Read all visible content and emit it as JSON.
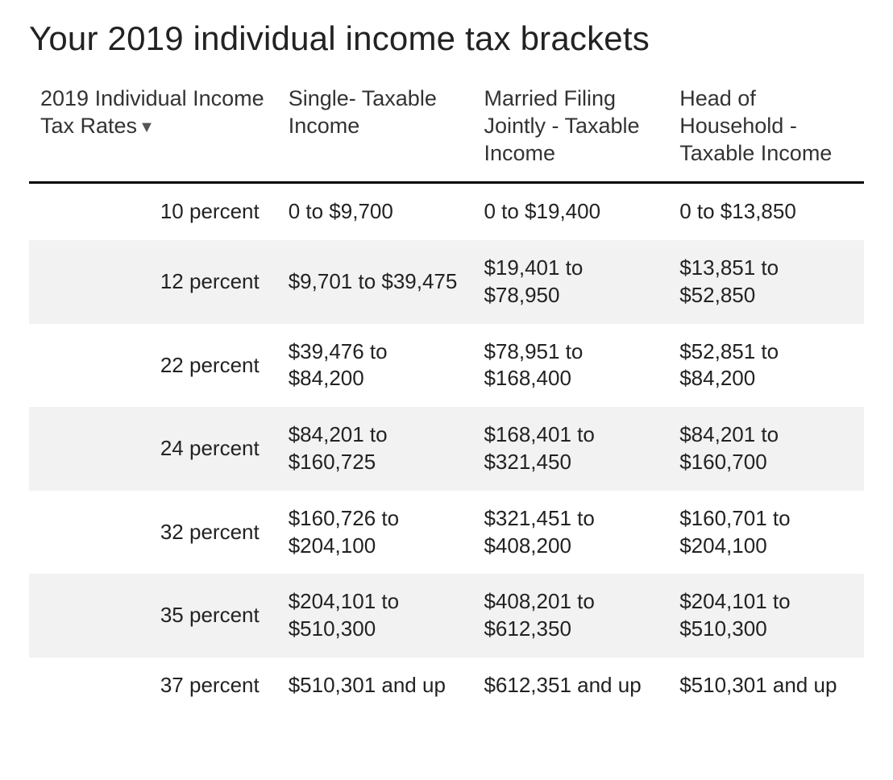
{
  "title": "Your 2019 individual income tax brackets",
  "table": {
    "type": "table",
    "background_color": "#ffffff",
    "row_alt_color": "#f2f2f2",
    "header_border_color": "#000000",
    "text_color": "#222222",
    "header_fontsize": 27,
    "body_fontsize": 26,
    "title_fontsize": 42,
    "columns": [
      {
        "key": "rate",
        "label": "2019 Individual Income Tax Rates",
        "align": "right",
        "sortable": true,
        "sort_dir": "desc"
      },
      {
        "key": "single",
        "label": "Single- Taxable Income",
        "align": "left",
        "sortable": false
      },
      {
        "key": "joint",
        "label": "Married Filing Jointly - Taxable Income",
        "align": "left",
        "sortable": false
      },
      {
        "key": "hoh",
        "label": "Head of Household - Taxable Income",
        "align": "left",
        "sortable": false
      }
    ],
    "rows": [
      {
        "rate": "10 percent",
        "single": "0 to $9,700",
        "joint": "0 to $19,400",
        "hoh": "0 to $13,850"
      },
      {
        "rate": "12 percent",
        "single": "$9,701 to $39,475",
        "joint": "$19,401 to $78,950",
        "hoh": "$13,851 to $52,850"
      },
      {
        "rate": "22 percent",
        "single": "$39,476 to $84,200",
        "joint": "$78,951 to $168,400",
        "hoh": "$52,851 to $84,200"
      },
      {
        "rate": "24 percent",
        "single": "$84,201 to $160,725",
        "joint": "$168,401 to $321,450",
        "hoh": "$84,201 to $160,700"
      },
      {
        "rate": "32 percent",
        "single": "$160,726 to $204,100",
        "joint": "$321,451 to $408,200",
        "hoh": "$160,701 to $204,100"
      },
      {
        "rate": "35 percent",
        "single": "$204,101 to $510,300",
        "joint": "$408,201 to $612,350",
        "hoh": "$204,101 to $510,300"
      },
      {
        "rate": "37 percent",
        "single": "$510,301 and up",
        "joint": "$612,351 and up",
        "hoh": "$510,301 and up"
      }
    ]
  }
}
